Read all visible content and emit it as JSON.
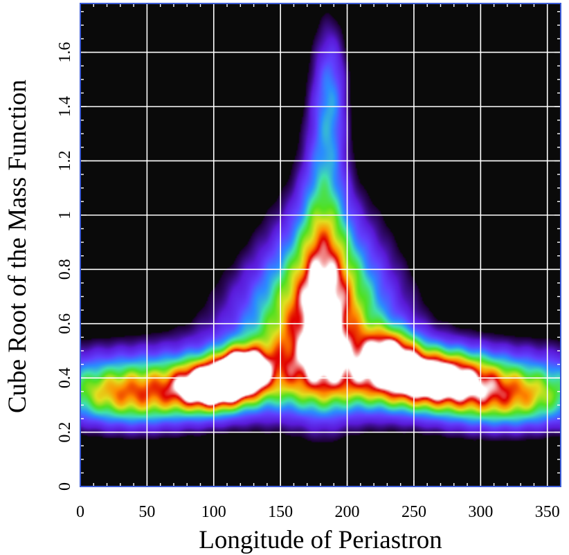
{
  "chart_data": {
    "type": "heatmap",
    "title": "",
    "xlabel": "Longitude of Periastron",
    "ylabel": "Cube Root of the Mass Function",
    "xlim": [
      0,
      360
    ],
    "ylim": [
      0,
      1.78
    ],
    "x_ticks": [
      0,
      50,
      100,
      150,
      200,
      250,
      300,
      350
    ],
    "y_ticks": [
      0,
      0.2,
      0.4,
      0.6,
      0.8,
      1,
      1.2,
      1.4,
      1.6
    ],
    "x_tick_labels": [
      "0",
      "50",
      "100",
      "150",
      "200",
      "250",
      "300",
      "350"
    ],
    "y_tick_labels": [
      "0",
      "0.2",
      "0.4",
      "0.6",
      "0.8",
      "1",
      "1.2",
      "1.4",
      "1.6"
    ],
    "grid": true,
    "background_color": "#0a0a0a",
    "grid_color": "#ffffff",
    "frame_color": "#3b5bd6",
    "colormap": [
      "#1a0030",
      "#5a1ad8",
      "#6040ff",
      "#2a8cff",
      "#40e0b0",
      "#50e020",
      "#e0e020",
      "#ff8c00",
      "#e00000",
      "#ffffff"
    ],
    "density_components": [
      {
        "x": 182,
        "y": 0.95,
        "sx": 12,
        "sy": 0.38,
        "weight": 0.38
      },
      {
        "x": 188,
        "y": 1.45,
        "sx": 9,
        "sy": 0.18,
        "weight": 0.3
      },
      {
        "x": 183,
        "y": 0.78,
        "sx": 28,
        "sy": 0.22,
        "weight": 0.5
      },
      {
        "x": 175,
        "y": 0.58,
        "sx": 45,
        "sy": 0.18,
        "weight": 0.62
      },
      {
        "x": 100,
        "y": 0.37,
        "sx": 18,
        "sy": 0.06,
        "weight": 0.95
      },
      {
        "x": 122,
        "y": 0.43,
        "sx": 12,
        "sy": 0.055,
        "weight": 0.9
      },
      {
        "x": 260,
        "y": 0.4,
        "sx": 30,
        "sy": 0.07,
        "weight": 0.85
      },
      {
        "x": 232,
        "y": 0.5,
        "sx": 14,
        "sy": 0.06,
        "weight": 0.55
      },
      {
        "x": 40,
        "y": 0.33,
        "sx": 40,
        "sy": 0.08,
        "weight": 0.62
      },
      {
        "x": 320,
        "y": 0.32,
        "sx": 40,
        "sy": 0.08,
        "weight": 0.6
      },
      {
        "x": 180,
        "y": 0.4,
        "sx": 190,
        "sy": 0.1,
        "weight": 0.45
      }
    ]
  }
}
